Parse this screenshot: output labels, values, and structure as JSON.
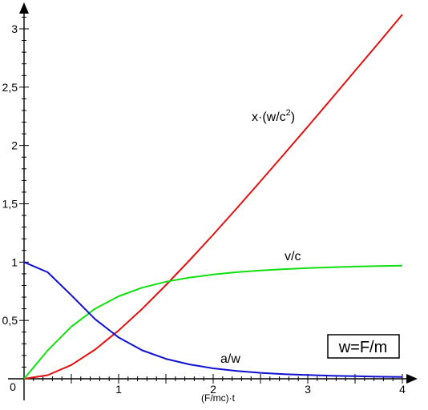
{
  "chart_data": {
    "type": "line",
    "xlabel": "(F/mc)·t",
    "ylabel": "",
    "xlim": [
      0,
      4
    ],
    "ylim": [
      0,
      3
    ],
    "origin_label": "0",
    "x_ticks": [
      "1",
      "2",
      "3",
      "4"
    ],
    "y_ticks": [
      "0,5",
      "1",
      "1,5",
      "2",
      "2,5",
      "3"
    ],
    "annotation_box": "w=F/m",
    "series": [
      {
        "name": "x·(w/c²)",
        "color": "#e01010",
        "x": [
          0,
          0.25,
          0.5,
          0.75,
          1,
          1.25,
          1.5,
          1.75,
          2,
          2.25,
          2.5,
          2.75,
          3,
          3.25,
          3.5,
          3.75,
          4
        ],
        "y": [
          0,
          0.031,
          0.118,
          0.25,
          0.414,
          0.6,
          0.803,
          1.016,
          1.236,
          1.462,
          1.693,
          1.926,
          2.162,
          2.4,
          2.64,
          2.88,
          3.123
        ]
      },
      {
        "name": "v/c",
        "color": "#10e010",
        "x": [
          0,
          0.25,
          0.5,
          0.75,
          1,
          1.25,
          1.5,
          1.75,
          2,
          2.25,
          2.5,
          2.75,
          3,
          3.25,
          3.5,
          3.75,
          4
        ],
        "y": [
          0,
          0.243,
          0.447,
          0.6,
          0.707,
          0.781,
          0.832,
          0.868,
          0.894,
          0.914,
          0.928,
          0.94,
          0.949,
          0.956,
          0.962,
          0.966,
          0.97
        ]
      },
      {
        "name": "a/w",
        "color": "#1010d0",
        "x": [
          0,
          0.25,
          0.5,
          0.75,
          1,
          1.25,
          1.5,
          1.75,
          2,
          2.25,
          2.5,
          2.75,
          3,
          3.25,
          3.5,
          3.75,
          4
        ],
        "y": [
          1,
          0.913,
          0.716,
          0.512,
          0.354,
          0.244,
          0.171,
          0.123,
          0.089,
          0.067,
          0.051,
          0.04,
          0.032,
          0.026,
          0.022,
          0.018,
          0.015
        ]
      }
    ],
    "curve_labels": {
      "x_main": "x·(w/c",
      "x_sup": "2",
      "x_tail": ")",
      "v": "v/c",
      "a": "a/w"
    },
    "grid": false
  }
}
